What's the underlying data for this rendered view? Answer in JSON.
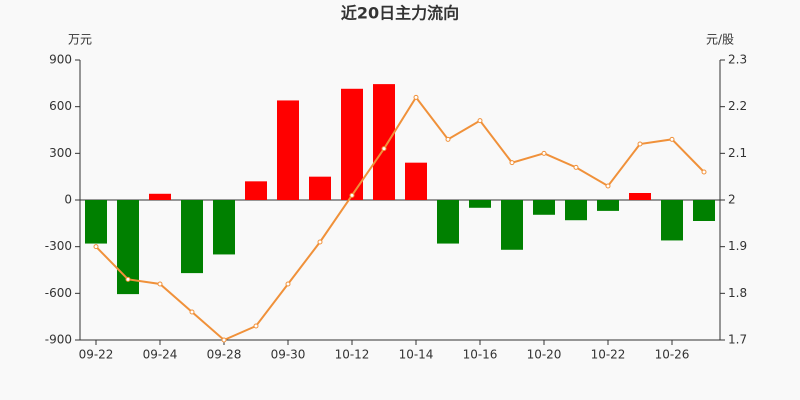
{
  "chart_data": {
    "type": "bar-line",
    "title": "近20日主力流向",
    "y_label": "万元",
    "y2_label": "元/股",
    "categories": [
      "09-22",
      null,
      "09-24",
      null,
      "09-28",
      null,
      "09-30",
      null,
      "10-12",
      null,
      "10-14",
      null,
      "10-16",
      null,
      "10-20",
      null,
      "10-22",
      null,
      "10-26",
      null
    ],
    "series": [
      {
        "type": "bar",
        "positive_color": "#ff0000",
        "negative_color": "#008000",
        "values": [
          -280,
          -605,
          40,
          -470,
          -350,
          120,
          640,
          150,
          715,
          745,
          240,
          -280,
          -50,
          -320,
          -95,
          -130,
          -70,
          45,
          -260,
          -135
        ]
      },
      {
        "type": "line",
        "axis": "y2",
        "color": "#f0913a",
        "values": [
          1.9,
          1.83,
          1.82,
          1.76,
          1.7,
          1.73,
          1.82,
          1.91,
          2.01,
          2.11,
          2.22,
          2.13,
          2.17,
          2.08,
          2.1,
          2.07,
          2.03,
          2.12,
          2.13,
          2.06
        ]
      }
    ],
    "ylim": [
      -900,
      900
    ],
    "yticks": [
      900,
      600,
      300,
      0,
      -300,
      -600,
      -900
    ],
    "y2lim": [
      1.7,
      2.3
    ],
    "y2ticks": [
      2.3,
      2.2,
      2.1,
      2,
      1.9,
      1.8,
      1.7
    ]
  }
}
